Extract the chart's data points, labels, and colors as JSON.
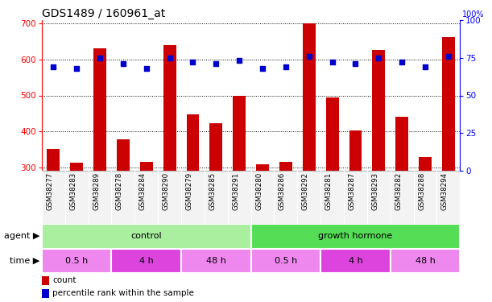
{
  "title": "GDS1489 / 160961_at",
  "samples": [
    "GSM38277",
    "GSM38283",
    "GSM38289",
    "GSM38278",
    "GSM38284",
    "GSM38290",
    "GSM38279",
    "GSM38285",
    "GSM38291",
    "GSM38280",
    "GSM38286",
    "GSM38292",
    "GSM38281",
    "GSM38287",
    "GSM38293",
    "GSM38282",
    "GSM38288",
    "GSM38294"
  ],
  "counts": [
    350,
    313,
    632,
    378,
    315,
    640,
    448,
    422,
    498,
    308,
    315,
    700,
    495,
    403,
    627,
    440,
    328,
    662
  ],
  "percentiles": [
    69,
    68,
    75,
    71,
    68,
    75,
    72,
    71,
    73,
    68,
    69,
    76,
    72,
    71,
    75,
    72,
    69,
    76
  ],
  "ylim_left": [
    290,
    710
  ],
  "ylim_right": [
    0,
    100
  ],
  "yticks_left": [
    300,
    400,
    500,
    600,
    700
  ],
  "yticks_right": [
    0,
    25,
    50,
    75,
    100
  ],
  "bar_color": "#CC0000",
  "dot_color": "#0000CC",
  "agent_groups": [
    {
      "label": "control",
      "start": 0,
      "end": 9,
      "color": "#AAEEA0"
    },
    {
      "label": "growth hormone",
      "start": 9,
      "end": 18,
      "color": "#55DD55"
    }
  ],
  "time_groups": [
    {
      "label": "0.5 h",
      "start": 0,
      "end": 3,
      "color": "#EE88EE"
    },
    {
      "label": "4 h",
      "start": 3,
      "end": 6,
      "color": "#DD44DD"
    },
    {
      "label": "48 h",
      "start": 6,
      "end": 9,
      "color": "#EE88EE"
    },
    {
      "label": "0.5 h",
      "start": 9,
      "end": 12,
      "color": "#EE88EE"
    },
    {
      "label": "4 h",
      "start": 12,
      "end": 15,
      "color": "#DD44DD"
    },
    {
      "label": "48 h",
      "start": 15,
      "end": 18,
      "color": "#EE88EE"
    }
  ],
  "legend_count_color": "#CC0000",
  "legend_pct_color": "#0000CC",
  "grid_color": "#000000",
  "background_color": "#ffffff",
  "title_fontsize": 10
}
